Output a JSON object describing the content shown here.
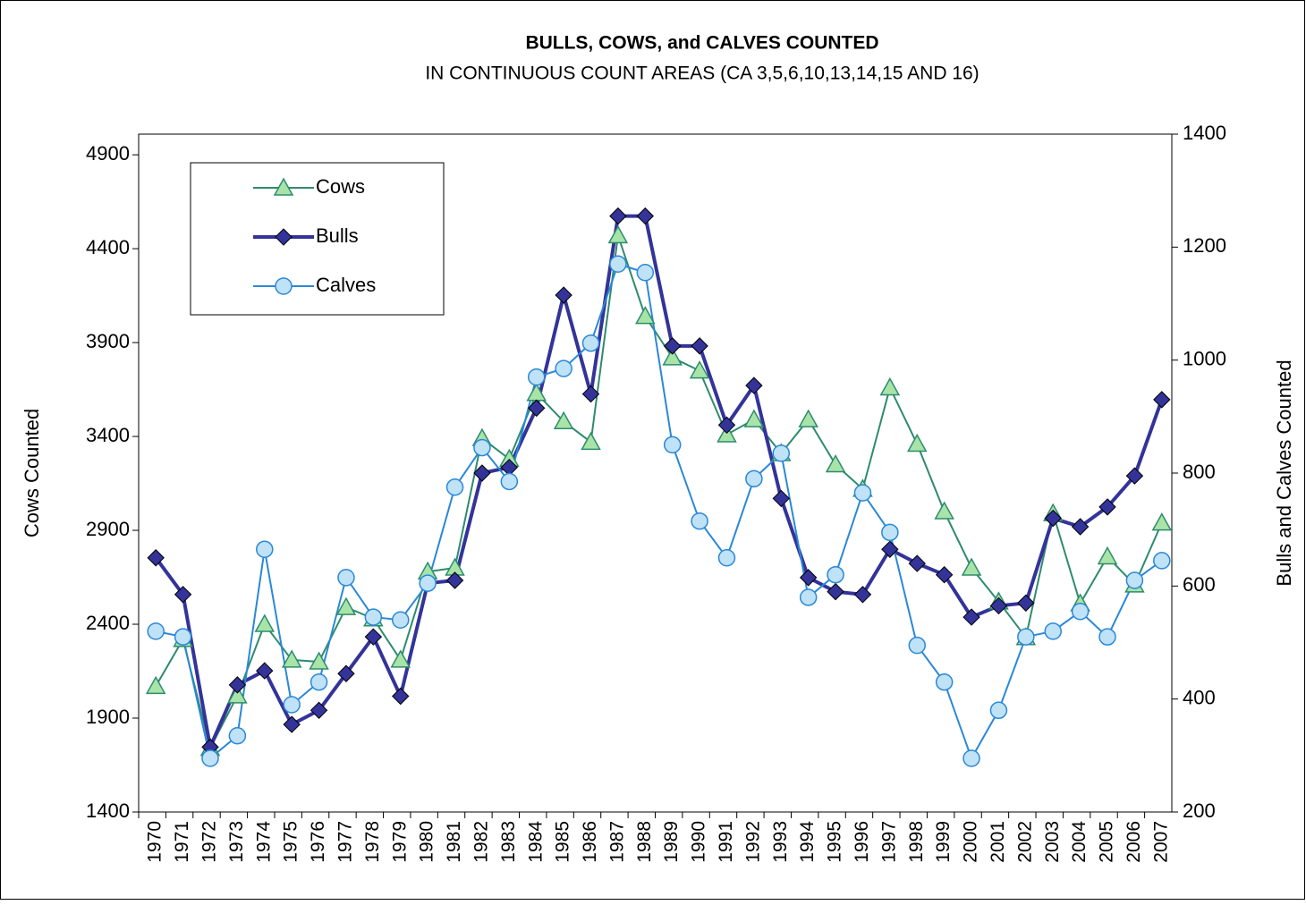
{
  "chart_data": {
    "type": "line",
    "title": "BULLS, COWS, and CALVES COUNTED",
    "subtitle": "IN CONTINUOUS COUNT AREAS (CA 3,5,6,10,13,14,15 AND 16)",
    "ylabel": "Cows Counted",
    "y2label": "Bulls and Calves Counted",
    "categories": [
      "1970",
      "1971",
      "1972",
      "1973",
      "1974",
      "1975",
      "1976",
      "1977",
      "1978",
      "1979",
      "1980",
      "1981",
      "1982",
      "1983",
      "1984",
      "1985",
      "1986",
      "1987",
      "1988",
      "1989",
      "1990",
      "1991",
      "1992",
      "1993",
      "1994",
      "1995",
      "1996",
      "1997",
      "1998",
      "1999",
      "2000",
      "2001",
      "2002",
      "2003",
      "2004",
      "2005",
      "2006",
      "2007"
    ],
    "series": [
      {
        "name": "Cows",
        "color": "#2e8b6e",
        "marker": "triangle",
        "marker_fill": "#a8e4a8",
        "axis": "y",
        "values": [
          2070,
          2320,
          1740,
          2020,
          2400,
          2210,
          2200,
          2490,
          2430,
          2210,
          2680,
          2700,
          3390,
          3280,
          3630,
          3480,
          3370,
          4470,
          4040,
          3820,
          3750,
          3410,
          3490,
          3310,
          3490,
          3250,
          3120,
          3660,
          3360,
          3000,
          2700,
          2520,
          2330,
          2990,
          2510,
          2760,
          2610,
          2940
        ]
      },
      {
        "name": "Bulls",
        "color": "#333399",
        "marker": "diamond",
        "marker_fill": "#333399",
        "axis": "y2",
        "values": [
          650,
          585,
          315,
          425,
          450,
          355,
          380,
          445,
          510,
          405,
          605,
          610,
          800,
          810,
          915,
          1115,
          940,
          1255,
          1255,
          1025,
          1025,
          885,
          955,
          755,
          615,
          590,
          585,
          665,
          640,
          620,
          545,
          565,
          570,
          720,
          705,
          740,
          795,
          930
        ]
      },
      {
        "name": "Calves",
        "color": "#2a88d8",
        "marker": "circle",
        "marker_fill": "#bfe2f7",
        "axis": "y2",
        "values": [
          520,
          510,
          295,
          335,
          665,
          390,
          430,
          615,
          545,
          540,
          605,
          775,
          845,
          785,
          970,
          985,
          1030,
          1170,
          1155,
          850,
          715,
          650,
          790,
          835,
          580,
          620,
          765,
          695,
          495,
          430,
          295,
          380,
          510,
          520,
          555,
          510,
          610,
          645
        ]
      }
    ],
    "ylim": [
      1400,
      5010
    ],
    "yticks": [
      1400,
      1900,
      2400,
      2900,
      3400,
      3900,
      4400,
      4900
    ],
    "y2lim": [
      200,
      1400
    ],
    "y2ticks": [
      200,
      400,
      600,
      800,
      1000,
      1200,
      1400
    ],
    "legend": "upper left"
  }
}
